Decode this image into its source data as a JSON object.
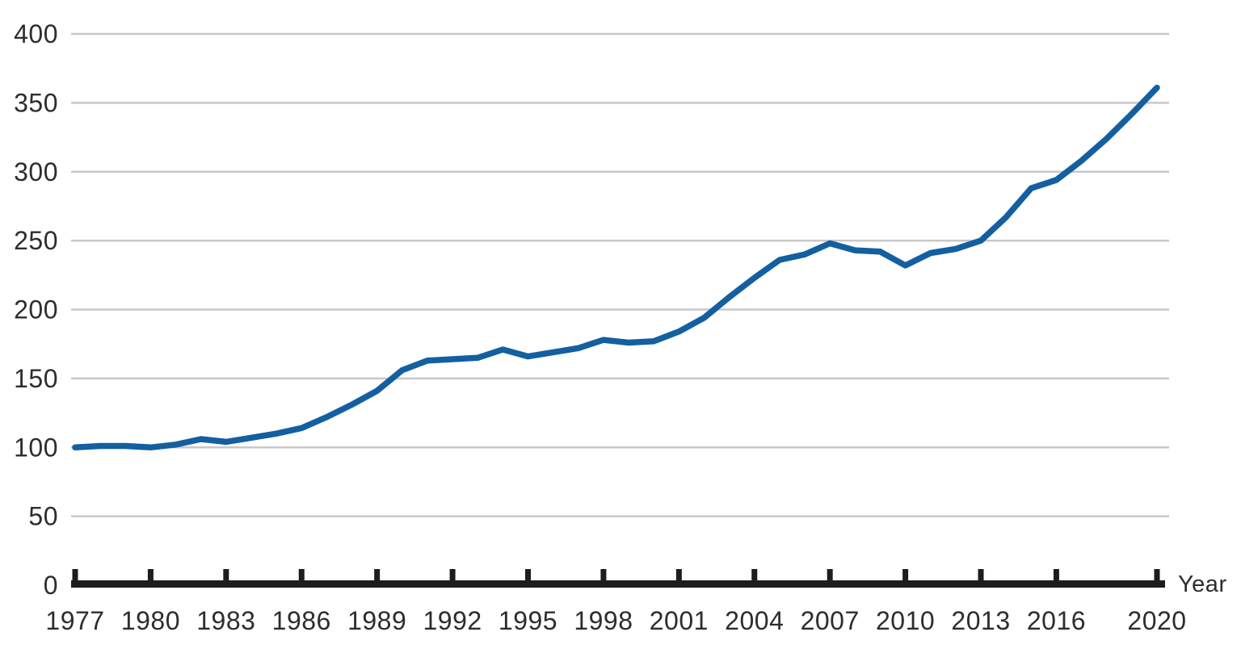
{
  "chart_data": {
    "type": "line",
    "title": "",
    "xlabel": "Year",
    "ylabel": "",
    "x": [
      1977,
      1978,
      1979,
      1980,
      1981,
      1982,
      1983,
      1984,
      1985,
      1986,
      1987,
      1988,
      1989,
      1990,
      1991,
      1992,
      1993,
      1994,
      1995,
      1996,
      1997,
      1998,
      1999,
      2000,
      2001,
      2002,
      2003,
      2004,
      2005,
      2006,
      2007,
      2008,
      2009,
      2010,
      2011,
      2012,
      2013,
      2014,
      2015,
      2016,
      2017,
      2018,
      2019,
      2020
    ],
    "values": [
      100,
      101,
      101,
      100,
      102,
      106,
      104,
      107,
      110,
      114,
      122,
      131,
      141,
      156,
      163,
      164,
      165,
      171,
      166,
      169,
      172,
      178,
      176,
      177,
      184,
      194,
      209,
      223,
      236,
      240,
      248,
      243,
      242,
      232,
      241,
      244,
      250,
      267,
      288,
      294,
      308,
      324,
      342,
      361
    ],
    "x_tick_labels": [
      "1977",
      "1980",
      "1983",
      "1986",
      "1989",
      "1992",
      "1995",
      "1998",
      "2001",
      "2004",
      "2007",
      "2010",
      "2013",
      "2016",
      "2020"
    ],
    "x_tick_years": [
      1977,
      1980,
      1983,
      1986,
      1989,
      1992,
      1995,
      1998,
      2001,
      2004,
      2007,
      2010,
      2013,
      2016,
      2020
    ],
    "y_ticks": [
      0,
      50,
      100,
      150,
      200,
      250,
      300,
      350,
      400
    ],
    "ylim": [
      0,
      400
    ],
    "xlim": [
      1977,
      2020
    ],
    "grid": "horizontal",
    "legend": "none",
    "line_color": "#135fa0",
    "grid_color": "#c8c8c8",
    "axis_color": "#1d1d1e",
    "label_color": "#2e2d2c"
  }
}
